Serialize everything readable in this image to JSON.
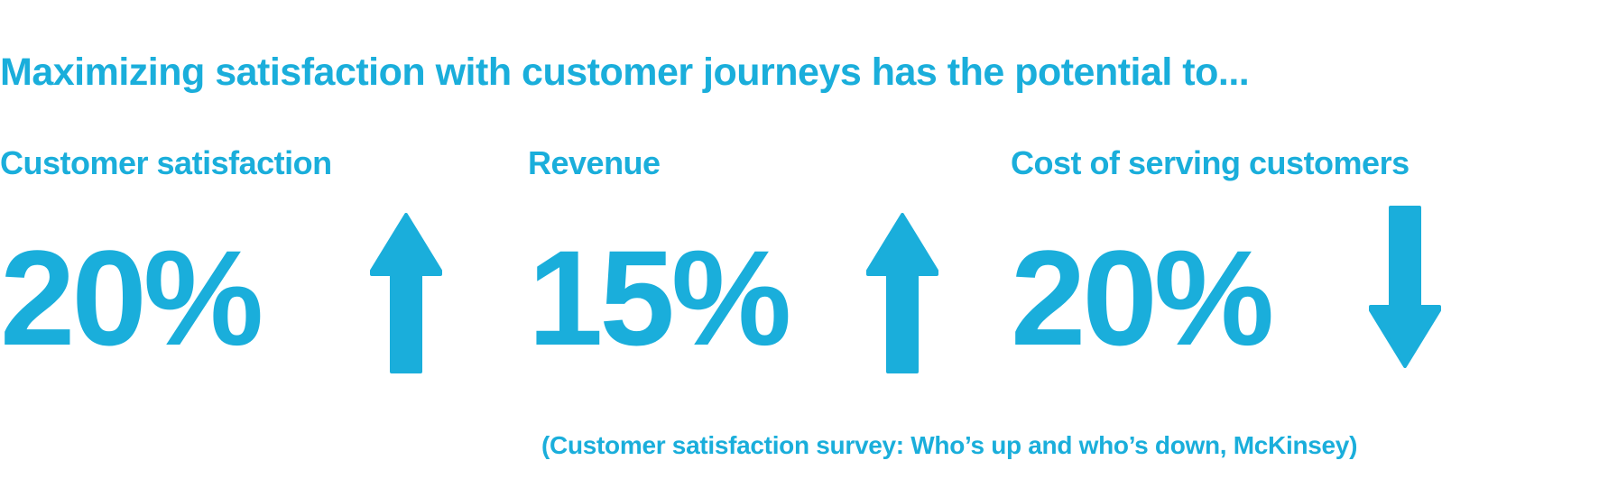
{
  "headline": "Maximizing satisfaction with customer journeys has the potential to...",
  "stats": [
    {
      "label": "Customer satisfaction",
      "value": "20%",
      "direction_icon": "arrow-up-icon"
    },
    {
      "label": "Revenue",
      "value": "15%",
      "direction_icon": "arrow-up-icon"
    },
    {
      "label": "Cost of serving customers",
      "value": "20%",
      "direction_icon": "arrow-down-icon"
    }
  ],
  "citation": "(Customer satisfaction survey: Who’s up and who’s down, McKinsey)",
  "colors": {
    "accent": "#1aaedb",
    "background": "#ffffff"
  }
}
